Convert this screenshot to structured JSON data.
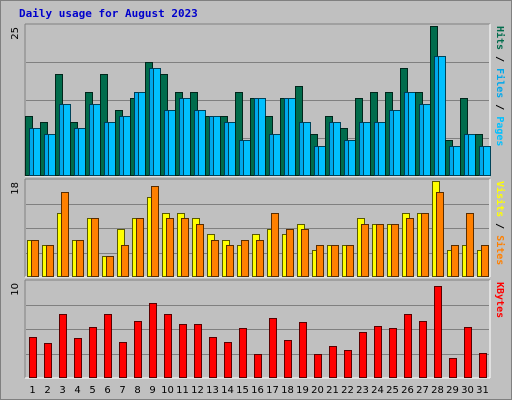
{
  "title": "Daily usage for August 2023",
  "colors": {
    "background": "#c0c0c0",
    "plot": "#c0c0c0",
    "title": "#0000cc",
    "hits": "#006c4c",
    "files": "#00a8ec",
    "pages": "#00c0ff",
    "visits": "#ffff00",
    "sites": "#ff8000",
    "kbytes": "#ff0000",
    "weekend": "#00805c",
    "weekday": "#000000",
    "separator": "#000000"
  },
  "chart_data": [
    {
      "type": "bar",
      "panel": "top",
      "ymax_label": "25",
      "ymax": 25,
      "x": [
        1,
        2,
        3,
        4,
        5,
        6,
        7,
        8,
        9,
        10,
        11,
        12,
        13,
        14,
        15,
        16,
        17,
        18,
        19,
        20,
        21,
        22,
        23,
        24,
        25,
        26,
        27,
        28,
        29,
        30,
        31
      ],
      "weekend_days": [
        5,
        6,
        12,
        13,
        19,
        20,
        26,
        27
      ],
      "right_label": {
        "parts": [
          "Pages",
          "Files",
          "Hits"
        ],
        "separator": " / "
      },
      "series": [
        {
          "name": "Hits",
          "color": "#006c4c",
          "values": [
            10,
            9,
            17,
            9,
            14,
            17,
            11,
            13,
            19,
            17,
            14,
            14,
            10,
            10,
            14,
            13,
            10,
            13,
            15,
            7,
            10,
            8,
            13,
            14,
            14,
            18,
            14,
            25,
            6,
            13,
            7
          ]
        },
        {
          "name": "Files",
          "color": "#00a8ec",
          "values": [
            8,
            7,
            12,
            8,
            12,
            9,
            10,
            14,
            18,
            11,
            13,
            11,
            10,
            9,
            6,
            13,
            7,
            13,
            9,
            5,
            9,
            6,
            9,
            9,
            11,
            14,
            12,
            20,
            5,
            7,
            5
          ]
        },
        {
          "name": "Pages",
          "color": "#00c0ff",
          "values": [
            8,
            7,
            12,
            8,
            12,
            9,
            10,
            14,
            18,
            11,
            13,
            11,
            10,
            9,
            6,
            13,
            7,
            13,
            9,
            5,
            9,
            6,
            9,
            9,
            11,
            14,
            12,
            20,
            5,
            7,
            5
          ]
        }
      ]
    },
    {
      "type": "bar",
      "panel": "middle",
      "ymax_label": "18",
      "ymax": 18,
      "x": [
        1,
        2,
        3,
        4,
        5,
        6,
        7,
        8,
        9,
        10,
        11,
        12,
        13,
        14,
        15,
        16,
        17,
        18,
        19,
        20,
        21,
        22,
        23,
        24,
        25,
        26,
        27,
        28,
        29,
        30,
        31
      ],
      "weekend_days": [
        5,
        6,
        12,
        13,
        19,
        20,
        26,
        27
      ],
      "right_label": {
        "parts": [
          "Sites",
          "Visits"
        ],
        "separator": " / "
      },
      "series": [
        {
          "name": "Visits",
          "color": "#ffff00",
          "values": [
            7,
            6,
            12,
            7,
            11,
            4,
            9,
            11,
            15,
            12,
            12,
            11,
            8,
            7,
            6,
            8,
            9,
            8,
            10,
            5,
            6,
            6,
            11,
            10,
            10,
            12,
            12,
            18,
            5,
            6,
            5
          ]
        },
        {
          "name": "Sites",
          "color": "#ff8000",
          "values": [
            7,
            6,
            16,
            7,
            11,
            4,
            6,
            11,
            17,
            11,
            11,
            10,
            7,
            6,
            7,
            7,
            12,
            9,
            9,
            6,
            6,
            6,
            10,
            10,
            10,
            11,
            12,
            16,
            6,
            12,
            6
          ]
        }
      ]
    },
    {
      "type": "bar",
      "panel": "bottom",
      "ymax_label": "10",
      "ymax": 10,
      "x": [
        1,
        2,
        3,
        4,
        5,
        6,
        7,
        8,
        9,
        10,
        11,
        12,
        13,
        14,
        15,
        16,
        17,
        18,
        19,
        20,
        21,
        22,
        23,
        24,
        25,
        26,
        27,
        28,
        29,
        30,
        31
      ],
      "weekend_days": [
        5,
        6,
        12,
        13,
        19,
        20,
        26,
        27
      ],
      "right_label": {
        "parts": [
          "KBytes"
        ],
        "separator": ""
      },
      "series": [
        {
          "name": "KBytes",
          "color": "#ff0000",
          "values": [
            4.3,
            3.6,
            6.7,
            4.2,
            5.3,
            6.7,
            3.8,
            5.9,
            7.8,
            6.7,
            5.6,
            5.6,
            4.3,
            3.7,
            5.2,
            2.5,
            6.3,
            4.0,
            5.8,
            2.5,
            3.3,
            2.9,
            4.8,
            5.4,
            5.2,
            6.7,
            5.9,
            9.6,
            2.1,
            5.3,
            2.6
          ]
        }
      ]
    }
  ]
}
